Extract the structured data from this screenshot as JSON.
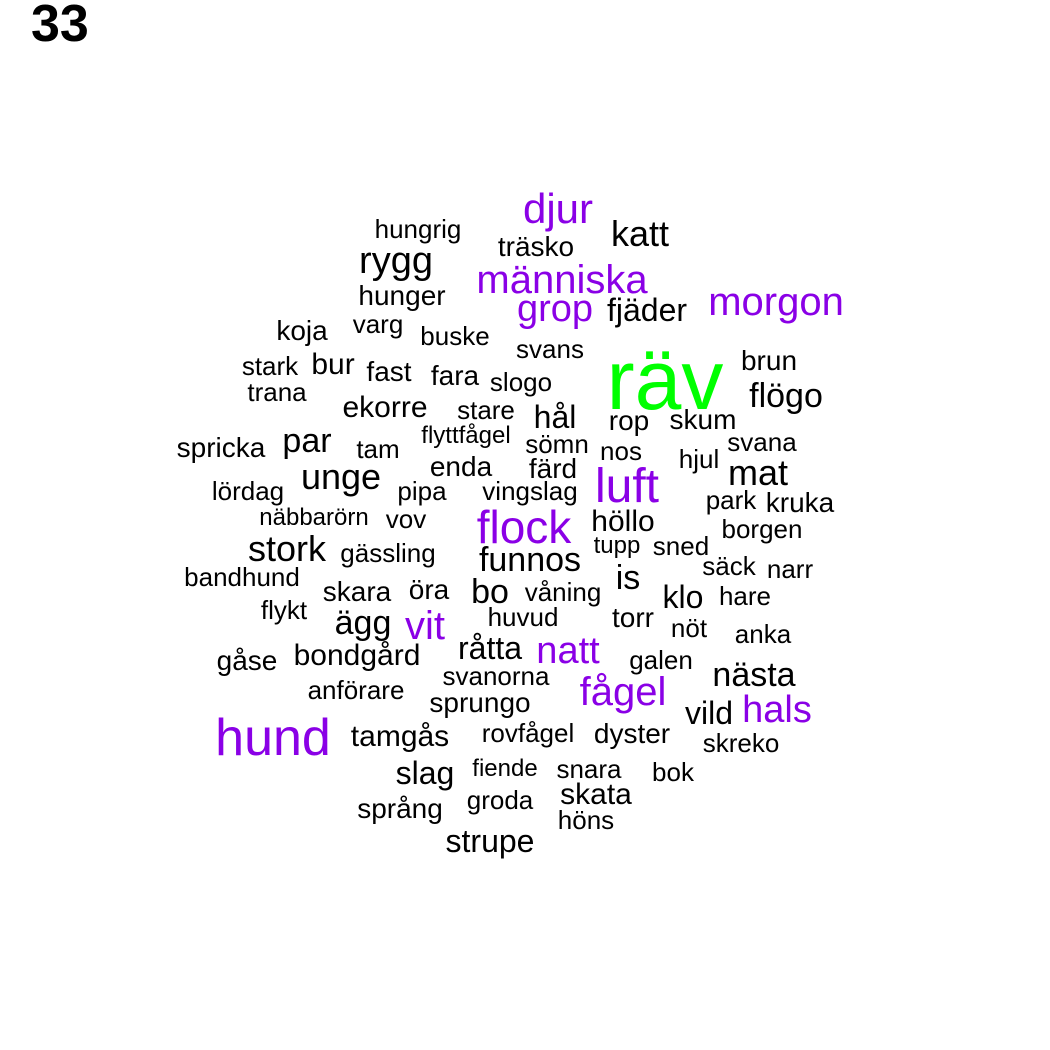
{
  "page_number": "33",
  "colors": {
    "primary": "#00ff00",
    "accent": "#8a00e6",
    "default": "#000000"
  },
  "words": [
    {
      "text": "räv",
      "color": "primary"
    },
    {
      "text": "hund",
      "color": "accent"
    },
    {
      "text": "djur",
      "color": "accent"
    },
    {
      "text": "människa",
      "color": "accent"
    },
    {
      "text": "grop",
      "color": "accent"
    },
    {
      "text": "morgon",
      "color": "accent"
    },
    {
      "text": "luft",
      "color": "accent"
    },
    {
      "text": "flock",
      "color": "accent"
    },
    {
      "text": "vit",
      "color": "accent"
    },
    {
      "text": "natt",
      "color": "accent"
    },
    {
      "text": "fågel",
      "color": "accent"
    },
    {
      "text": "hals",
      "color": "accent"
    },
    {
      "text": "katt",
      "color": "default"
    },
    {
      "text": "hungrig",
      "color": "default"
    },
    {
      "text": "träsko",
      "color": "default"
    },
    {
      "text": "rygg",
      "color": "default"
    },
    {
      "text": "hunger",
      "color": "default"
    },
    {
      "text": "fjäder",
      "color": "default"
    },
    {
      "text": "koja",
      "color": "default"
    },
    {
      "text": "varg",
      "color": "default"
    },
    {
      "text": "buske",
      "color": "default"
    },
    {
      "text": "svans",
      "color": "default"
    },
    {
      "text": "brun",
      "color": "default"
    },
    {
      "text": "stark",
      "color": "default"
    },
    {
      "text": "bur",
      "color": "default"
    },
    {
      "text": "fast",
      "color": "default"
    },
    {
      "text": "fara",
      "color": "default"
    },
    {
      "text": "slogo",
      "color": "default"
    },
    {
      "text": "trana",
      "color": "default"
    },
    {
      "text": "flögo",
      "color": "default"
    },
    {
      "text": "ekorre",
      "color": "default"
    },
    {
      "text": "stare",
      "color": "default"
    },
    {
      "text": "hål",
      "color": "default"
    },
    {
      "text": "rop",
      "color": "default"
    },
    {
      "text": "skum",
      "color": "default"
    },
    {
      "text": "spricka",
      "color": "default"
    },
    {
      "text": "par",
      "color": "default"
    },
    {
      "text": "tam",
      "color": "default"
    },
    {
      "text": "flyttfågel",
      "color": "default"
    },
    {
      "text": "sömn",
      "color": "default"
    },
    {
      "text": "nos",
      "color": "default"
    },
    {
      "text": "svana",
      "color": "default"
    },
    {
      "text": "hjul",
      "color": "default"
    },
    {
      "text": "unge",
      "color": "default"
    },
    {
      "text": "enda",
      "color": "default"
    },
    {
      "text": "färd",
      "color": "default"
    },
    {
      "text": "mat",
      "color": "default"
    },
    {
      "text": "lördag",
      "color": "default"
    },
    {
      "text": "pipa",
      "color": "default"
    },
    {
      "text": "vingslag",
      "color": "default"
    },
    {
      "text": "park",
      "color": "default"
    },
    {
      "text": "kruka",
      "color": "default"
    },
    {
      "text": "näbbarörn",
      "color": "default"
    },
    {
      "text": "vov",
      "color": "default"
    },
    {
      "text": "höllo",
      "color": "default"
    },
    {
      "text": "borgen",
      "color": "default"
    },
    {
      "text": "stork",
      "color": "default"
    },
    {
      "text": "gässling",
      "color": "default"
    },
    {
      "text": "funnos",
      "color": "default"
    },
    {
      "text": "tupp",
      "color": "default"
    },
    {
      "text": "sned",
      "color": "default"
    },
    {
      "text": "bandhund",
      "color": "default"
    },
    {
      "text": "säck",
      "color": "default"
    },
    {
      "text": "narr",
      "color": "default"
    },
    {
      "text": "is",
      "color": "default"
    },
    {
      "text": "skara",
      "color": "default"
    },
    {
      "text": "öra",
      "color": "default"
    },
    {
      "text": "bo",
      "color": "default"
    },
    {
      "text": "våning",
      "color": "default"
    },
    {
      "text": "flykt",
      "color": "default"
    },
    {
      "text": "klo",
      "color": "default"
    },
    {
      "text": "hare",
      "color": "default"
    },
    {
      "text": "ägg",
      "color": "default"
    },
    {
      "text": "huvud",
      "color": "default"
    },
    {
      "text": "torr",
      "color": "default"
    },
    {
      "text": "nöt",
      "color": "default"
    },
    {
      "text": "anka",
      "color": "default"
    },
    {
      "text": "gåse",
      "color": "default"
    },
    {
      "text": "bondgård",
      "color": "default"
    },
    {
      "text": "råtta",
      "color": "default"
    },
    {
      "text": "galen",
      "color": "default"
    },
    {
      "text": "svanorna",
      "color": "default"
    },
    {
      "text": "nästa",
      "color": "default"
    },
    {
      "text": "anförare",
      "color": "default"
    },
    {
      "text": "sprungo",
      "color": "default"
    },
    {
      "text": "vild",
      "color": "default"
    },
    {
      "text": "tamgås",
      "color": "default"
    },
    {
      "text": "rovfågel",
      "color": "default"
    },
    {
      "text": "dyster",
      "color": "default"
    },
    {
      "text": "skreko",
      "color": "default"
    },
    {
      "text": "slag",
      "color": "default"
    },
    {
      "text": "fiende",
      "color": "default"
    },
    {
      "text": "snara",
      "color": "default"
    },
    {
      "text": "bok",
      "color": "default"
    },
    {
      "text": "språng",
      "color": "default"
    },
    {
      "text": "groda",
      "color": "default"
    },
    {
      "text": "skata",
      "color": "default"
    },
    {
      "text": "höns",
      "color": "default"
    },
    {
      "text": "strupe",
      "color": "default"
    }
  ]
}
